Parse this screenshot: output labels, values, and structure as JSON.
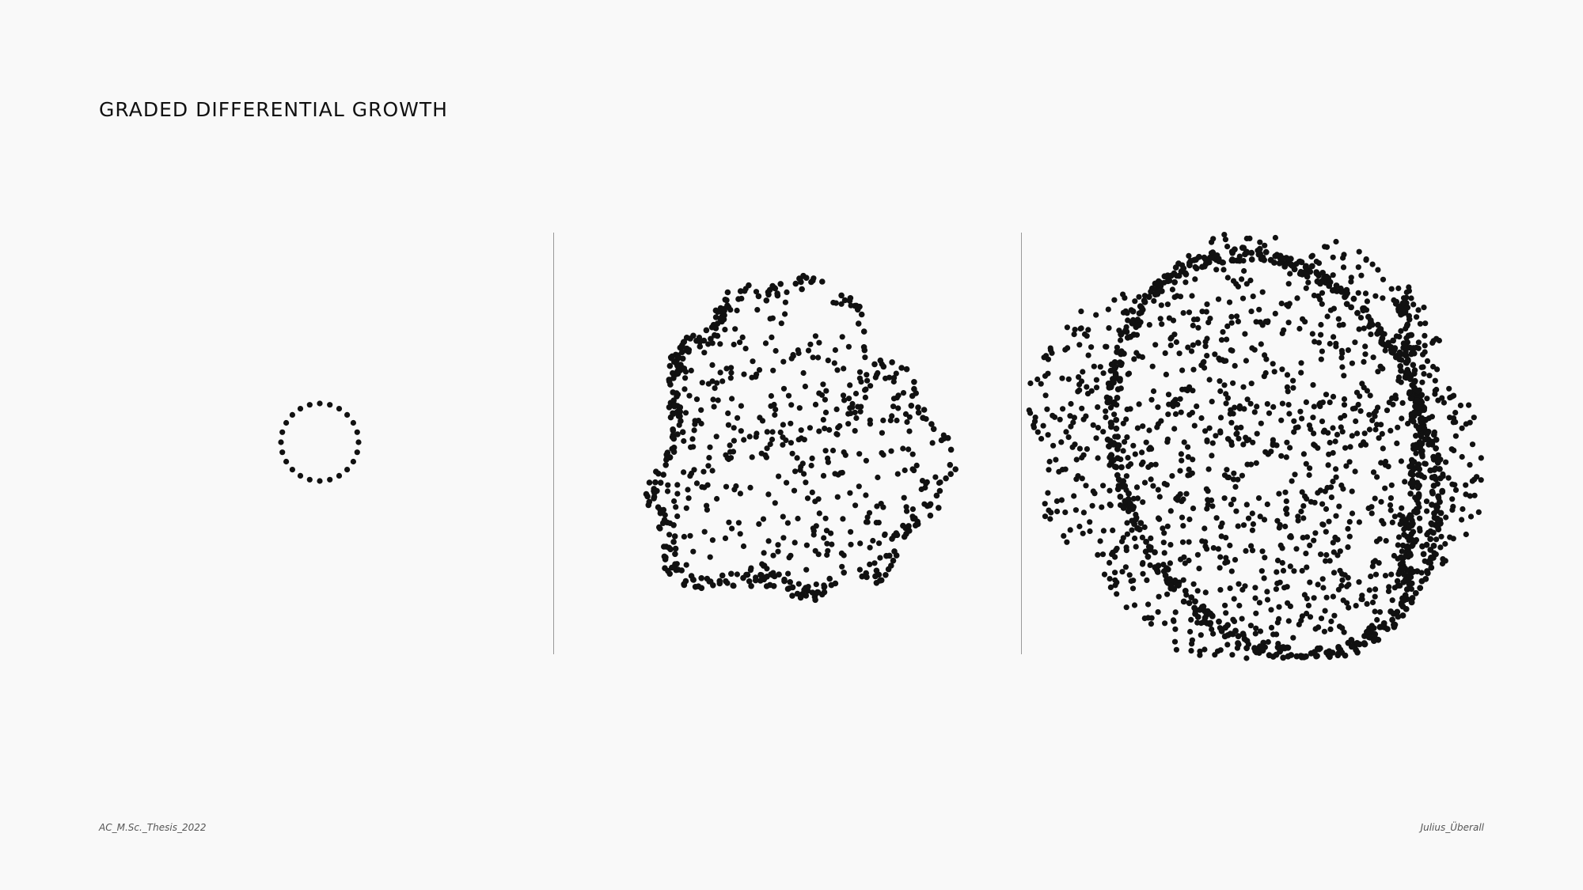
{
  "header": {
    "title": "GRADED DIFFERENTIAL GROWTH"
  },
  "footer": {
    "left": "AC_M.Sc._Thesis_2022",
    "right": "Julius_Überall"
  },
  "colors": {
    "background": "#f9f9f9",
    "dots": "#111111",
    "divider": "#9a9a9a",
    "text": "#111111"
  },
  "panels": [
    {
      "name": "growth-stage-1",
      "description_level": "initial ring of points"
    },
    {
      "name": "growth-stage-2",
      "description_level": "partially grown point cloud"
    },
    {
      "name": "growth-stage-3",
      "description_level": "fully grown point cloud"
    }
  ]
}
